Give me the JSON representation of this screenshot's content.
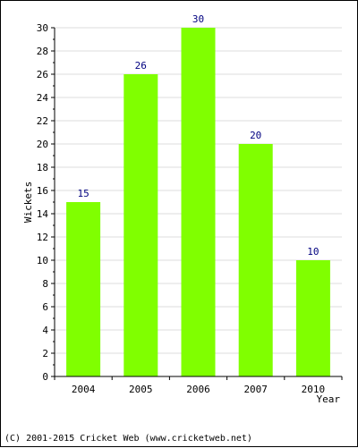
{
  "chart_data": {
    "type": "bar",
    "categories": [
      "2004",
      "2005",
      "2006",
      "2007",
      "2010"
    ],
    "values": [
      15,
      26,
      30,
      20,
      10
    ],
    "data_labels": [
      "15",
      "26",
      "30",
      "20",
      "10"
    ],
    "xlabel": "Year",
    "ylabel": "Wickets",
    "ylim": [
      0,
      30
    ],
    "y_ticks": [
      0,
      2,
      4,
      6,
      8,
      10,
      12,
      14,
      16,
      18,
      20,
      22,
      24,
      26,
      28,
      30
    ],
    "grid": true,
    "bar_color": "#80ff00",
    "label_color": "#000080",
    "grid_color": "#dddddd"
  },
  "footer": {
    "text": "(C) 2001-2015 Cricket Web (www.cricketweb.net)"
  }
}
